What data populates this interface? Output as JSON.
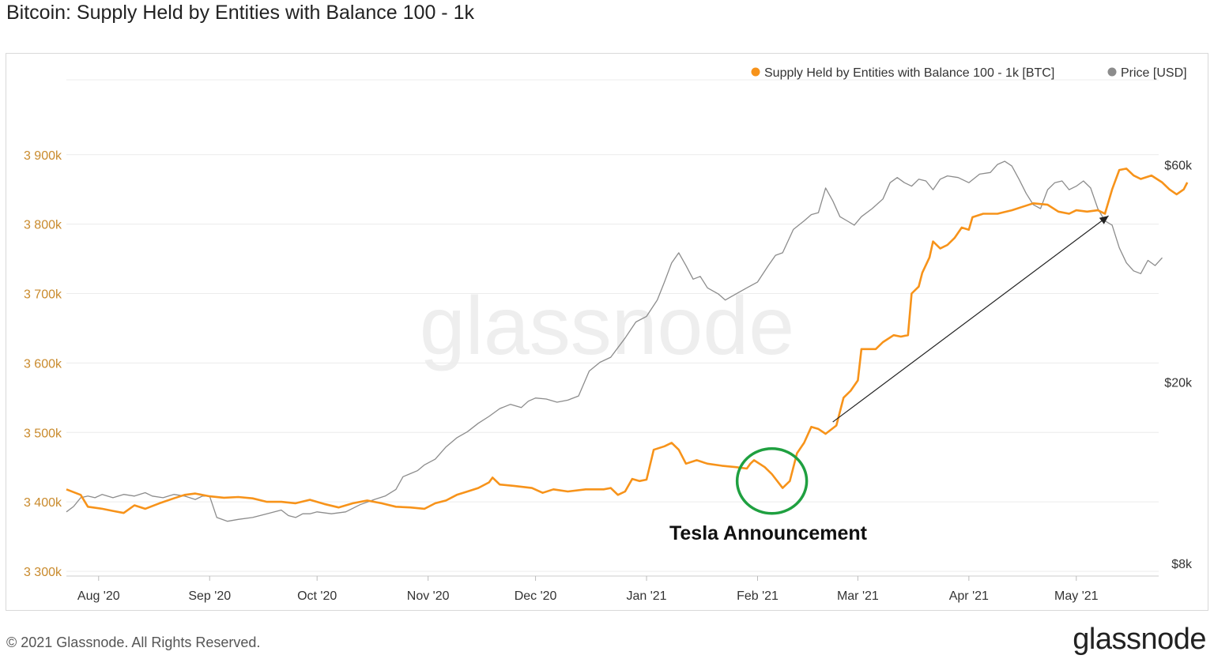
{
  "title": "Bitcoin: Supply Held by Entities with Balance 100 - 1k",
  "footer": "© 2021 Glassnode. All Rights Reserved.",
  "brand": "glassnode",
  "watermark": "glassnode",
  "colors": {
    "supply": "#f7931a",
    "price": "#8c8c8c",
    "grid": "#ececec",
    "circle": "#1fa040",
    "leftAxis": "#c98a2c"
  },
  "chart_data": {
    "type": "line",
    "title": "Bitcoin: Supply Held by Entities with Balance 100 - 1k",
    "legend": [
      "Supply Held by Entities with Balance 100 - 1k [BTC]",
      "Price [USD]"
    ],
    "legend_position": "top-right",
    "x_ticks": [
      "Aug '20",
      "Sep '20",
      "Oct '20",
      "Nov '20",
      "Dec '20",
      "Jan '21",
      "Feb '21",
      "Mar '21",
      "Apr '21",
      "May '21"
    ],
    "x_tick_days": [
      9,
      40,
      70,
      101,
      131,
      162,
      193,
      221,
      252,
      282
    ],
    "x_range_days": [
      0,
      305
    ],
    "y_left": {
      "ylim": [
        3300,
        3910
      ],
      "ticks": [
        3300,
        3400,
        3500,
        3600,
        3700,
        3800,
        3900
      ],
      "tick_labels": [
        "3 300k",
        "3 400k",
        "3 500k",
        "3 600k",
        "3 700k",
        "3 800k",
        "3 900k"
      ]
    },
    "y_right": {
      "scale": "log",
      "ylim": [
        8000,
        68000
      ],
      "ticks": [
        8000,
        20000,
        60000
      ],
      "tick_labels": [
        "$8k",
        "$20k",
        "$60k"
      ]
    },
    "series": [
      {
        "name": "Supply Held by Entities with Balance 100 - 1k [BTC]",
        "axis": "left",
        "points": [
          [
            0,
            3418
          ],
          [
            4,
            3410
          ],
          [
            6,
            3393
          ],
          [
            10,
            3390
          ],
          [
            13,
            3387
          ],
          [
            16,
            3384
          ],
          [
            19,
            3395
          ],
          [
            22,
            3390
          ],
          [
            26,
            3398
          ],
          [
            30,
            3405
          ],
          [
            33,
            3410
          ],
          [
            36,
            3412
          ],
          [
            40,
            3408
          ],
          [
            44,
            3406
          ],
          [
            48,
            3407
          ],
          [
            52,
            3405
          ],
          [
            56,
            3400
          ],
          [
            60,
            3400
          ],
          [
            64,
            3398
          ],
          [
            68,
            3403
          ],
          [
            72,
            3397
          ],
          [
            76,
            3392
          ],
          [
            80,
            3398
          ],
          [
            84,
            3402
          ],
          [
            88,
            3398
          ],
          [
            92,
            3393
          ],
          [
            96,
            3392
          ],
          [
            100,
            3390
          ],
          [
            103,
            3398
          ],
          [
            106,
            3402
          ],
          [
            109,
            3410
          ],
          [
            112,
            3415
          ],
          [
            115,
            3420
          ],
          [
            118,
            3428
          ],
          [
            119,
            3435
          ],
          [
            121,
            3425
          ],
          [
            125,
            3423
          ],
          [
            130,
            3420
          ],
          [
            133,
            3413
          ],
          [
            136,
            3418
          ],
          [
            140,
            3415
          ],
          [
            145,
            3418
          ],
          [
            150,
            3418
          ],
          [
            152,
            3420
          ],
          [
            154,
            3410
          ],
          [
            156,
            3415
          ],
          [
            158,
            3433
          ],
          [
            160,
            3430
          ],
          [
            162,
            3432
          ],
          [
            164,
            3475
          ],
          [
            167,
            3480
          ],
          [
            169,
            3485
          ],
          [
            171,
            3475
          ],
          [
            173,
            3455
          ],
          [
            176,
            3460
          ],
          [
            179,
            3455
          ],
          [
            183,
            3452
          ],
          [
            187,
            3450
          ],
          [
            190,
            3448
          ],
          [
            191,
            3455
          ],
          [
            192,
            3460
          ],
          [
            195,
            3450
          ],
          [
            197,
            3440
          ],
          [
            200,
            3420
          ],
          [
            202,
            3430
          ],
          [
            204,
            3470
          ],
          [
            206,
            3485
          ],
          [
            208,
            3508
          ],
          [
            210,
            3505
          ],
          [
            212,
            3498
          ],
          [
            215,
            3510
          ],
          [
            217,
            3550
          ],
          [
            219,
            3560
          ],
          [
            221,
            3575
          ],
          [
            222,
            3620
          ],
          [
            223,
            3620
          ],
          [
            226,
            3620
          ],
          [
            228,
            3630
          ],
          [
            231,
            3640
          ],
          [
            233,
            3638
          ],
          [
            235,
            3640
          ],
          [
            236,
            3700
          ],
          [
            238,
            3710
          ],
          [
            239,
            3730
          ],
          [
            241,
            3752
          ],
          [
            242,
            3775
          ],
          [
            244,
            3765
          ],
          [
            246,
            3770
          ],
          [
            248,
            3780
          ],
          [
            250,
            3795
          ],
          [
            252,
            3792
          ],
          [
            253,
            3810
          ],
          [
            256,
            3815
          ],
          [
            260,
            3815
          ],
          [
            264,
            3820
          ],
          [
            267,
            3825
          ],
          [
            270,
            3830
          ],
          [
            274,
            3828
          ],
          [
            277,
            3818
          ],
          [
            280,
            3815
          ],
          [
            282,
            3820
          ],
          [
            285,
            3818
          ],
          [
            288,
            3820
          ],
          [
            290,
            3815
          ],
          [
            292,
            3850
          ],
          [
            294,
            3878
          ],
          [
            296,
            3880
          ],
          [
            298,
            3870
          ],
          [
            300,
            3865
          ],
          [
            303,
            3870
          ],
          [
            306,
            3860
          ],
          [
            308,
            3850
          ],
          [
            310,
            3843
          ],
          [
            312,
            3850
          ],
          [
            313,
            3860
          ]
        ]
      },
      {
        "name": "Price [USD]",
        "axis": "right",
        "points": [
          [
            0,
            10800
          ],
          [
            2,
            11100
          ],
          [
            4,
            11600
          ],
          [
            6,
            11700
          ],
          [
            8,
            11600
          ],
          [
            10,
            11800
          ],
          [
            13,
            11600
          ],
          [
            16,
            11800
          ],
          [
            19,
            11700
          ],
          [
            22,
            11900
          ],
          [
            24,
            11700
          ],
          [
            27,
            11600
          ],
          [
            30,
            11800
          ],
          [
            33,
            11700
          ],
          [
            36,
            11500
          ],
          [
            38,
            11700
          ],
          [
            40,
            11700
          ],
          [
            42,
            10500
          ],
          [
            45,
            10300
          ],
          [
            48,
            10400
          ],
          [
            52,
            10500
          ],
          [
            56,
            10700
          ],
          [
            60,
            10900
          ],
          [
            62,
            10600
          ],
          [
            64,
            10500
          ],
          [
            66,
            10700
          ],
          [
            68,
            10700
          ],
          [
            70,
            10800
          ],
          [
            74,
            10700
          ],
          [
            78,
            10800
          ],
          [
            82,
            11200
          ],
          [
            86,
            11500
          ],
          [
            89,
            11700
          ],
          [
            92,
            12100
          ],
          [
            94,
            12900
          ],
          [
            96,
            13100
          ],
          [
            98,
            13300
          ],
          [
            100,
            13700
          ],
          [
            103,
            14100
          ],
          [
            106,
            15000
          ],
          [
            109,
            15700
          ],
          [
            112,
            16200
          ],
          [
            115,
            16900
          ],
          [
            118,
            17500
          ],
          [
            121,
            18200
          ],
          [
            124,
            18600
          ],
          [
            127,
            18300
          ],
          [
            129,
            18900
          ],
          [
            131,
            19200
          ],
          [
            134,
            19100
          ],
          [
            137,
            18800
          ],
          [
            140,
            19000
          ],
          [
            143,
            19400
          ],
          [
            146,
            22000
          ],
          [
            149,
            23000
          ],
          [
            152,
            23600
          ],
          [
            156,
            26000
          ],
          [
            159,
            28200
          ],
          [
            162,
            29000
          ],
          [
            165,
            31500
          ],
          [
            167,
            34500
          ],
          [
            169,
            38000
          ],
          [
            171,
            40000
          ],
          [
            173,
            37500
          ],
          [
            175,
            35000
          ],
          [
            177,
            35500
          ],
          [
            179,
            33500
          ],
          [
            182,
            32500
          ],
          [
            184,
            31500
          ],
          [
            187,
            32500
          ],
          [
            190,
            33500
          ],
          [
            193,
            34500
          ],
          [
            196,
            37500
          ],
          [
            198,
            39500
          ],
          [
            200,
            40000
          ],
          [
            203,
            45000
          ],
          [
            206,
            47000
          ],
          [
            208,
            48500
          ],
          [
            210,
            49000
          ],
          [
            212,
            55500
          ],
          [
            214,
            52000
          ],
          [
            216,
            48000
          ],
          [
            218,
            47000
          ],
          [
            220,
            46000
          ],
          [
            222,
            48000
          ],
          [
            225,
            50000
          ],
          [
            228,
            52500
          ],
          [
            230,
            57000
          ],
          [
            232,
            58500
          ],
          [
            234,
            57000
          ],
          [
            236,
            56000
          ],
          [
            238,
            58000
          ],
          [
            240,
            57500
          ],
          [
            242,
            55000
          ],
          [
            244,
            58000
          ],
          [
            246,
            59000
          ],
          [
            249,
            58500
          ],
          [
            252,
            57000
          ],
          [
            255,
            59500
          ],
          [
            258,
            60000
          ],
          [
            260,
            62500
          ],
          [
            262,
            63500
          ],
          [
            264,
            62000
          ],
          [
            266,
            58000
          ],
          [
            268,
            54000
          ],
          [
            270,
            51000
          ],
          [
            272,
            50000
          ],
          [
            274,
            55000
          ],
          [
            276,
            57000
          ],
          [
            278,
            57500
          ],
          [
            280,
            55000
          ],
          [
            282,
            56000
          ],
          [
            284,
            57500
          ],
          [
            286,
            55500
          ],
          [
            288,
            50000
          ],
          [
            290,
            47000
          ],
          [
            292,
            46000
          ],
          [
            294,
            41000
          ],
          [
            296,
            38000
          ],
          [
            298,
            36500
          ],
          [
            300,
            36000
          ],
          [
            302,
            38500
          ],
          [
            304,
            37500
          ],
          [
            306,
            39000
          ]
        ]
      }
    ],
    "annotation": {
      "label": "Tesla Announcement",
      "circle_day": 197,
      "circle_value": 3430,
      "arrow_from": [
        214,
        3515
      ],
      "arrow_to": [
        291,
        3812
      ]
    }
  }
}
